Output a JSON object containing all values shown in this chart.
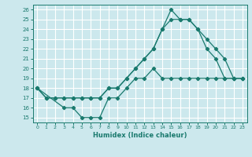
{
  "xlabel": "Humidex (Indice chaleur)",
  "xlim": [
    -0.5,
    23.5
  ],
  "ylim": [
    14.5,
    26.5
  ],
  "yticks": [
    15,
    16,
    17,
    18,
    19,
    20,
    21,
    22,
    23,
    24,
    25,
    26
  ],
  "xticks": [
    0,
    1,
    2,
    3,
    4,
    5,
    6,
    7,
    8,
    9,
    10,
    11,
    12,
    13,
    14,
    15,
    16,
    17,
    18,
    19,
    20,
    21,
    22,
    23
  ],
  "background_color": "#cce8ed",
  "grid_color": "#ffffff",
  "line_color": "#1a7a6e",
  "line1_x": [
    0,
    1,
    2,
    3,
    4,
    5,
    6,
    7,
    8,
    9,
    10,
    11,
    12,
    13,
    14,
    15,
    16,
    17,
    18,
    19,
    20,
    21,
    22,
    23
  ],
  "line1_y": [
    18,
    17,
    17,
    17,
    17,
    17,
    17,
    17,
    18,
    18,
    19,
    20,
    21,
    22,
    24,
    26,
    25,
    25,
    24,
    22,
    21,
    19,
    19,
    19
  ],
  "line2_x": [
    0,
    1,
    2,
    3,
    4,
    5,
    6,
    7,
    8,
    9,
    10,
    11,
    12,
    13,
    14,
    15,
    16,
    17,
    18,
    19,
    20,
    21,
    22,
    23
  ],
  "line2_y": [
    18,
    17,
    17,
    17,
    17,
    17,
    17,
    17,
    18,
    18,
    19,
    20,
    21,
    22,
    24,
    25,
    25,
    25,
    24,
    23,
    22,
    21,
    19,
    19
  ],
  "line3_x": [
    0,
    3,
    4,
    5,
    6,
    7,
    8,
    9,
    10,
    11,
    12,
    13,
    14,
    15,
    16,
    17,
    18,
    19,
    20,
    21,
    22,
    23
  ],
  "line3_y": [
    18,
    16,
    16,
    15,
    15,
    15,
    17,
    17,
    18,
    19,
    19,
    20,
    19,
    19,
    19,
    19,
    19,
    19,
    19,
    19,
    19,
    19
  ]
}
